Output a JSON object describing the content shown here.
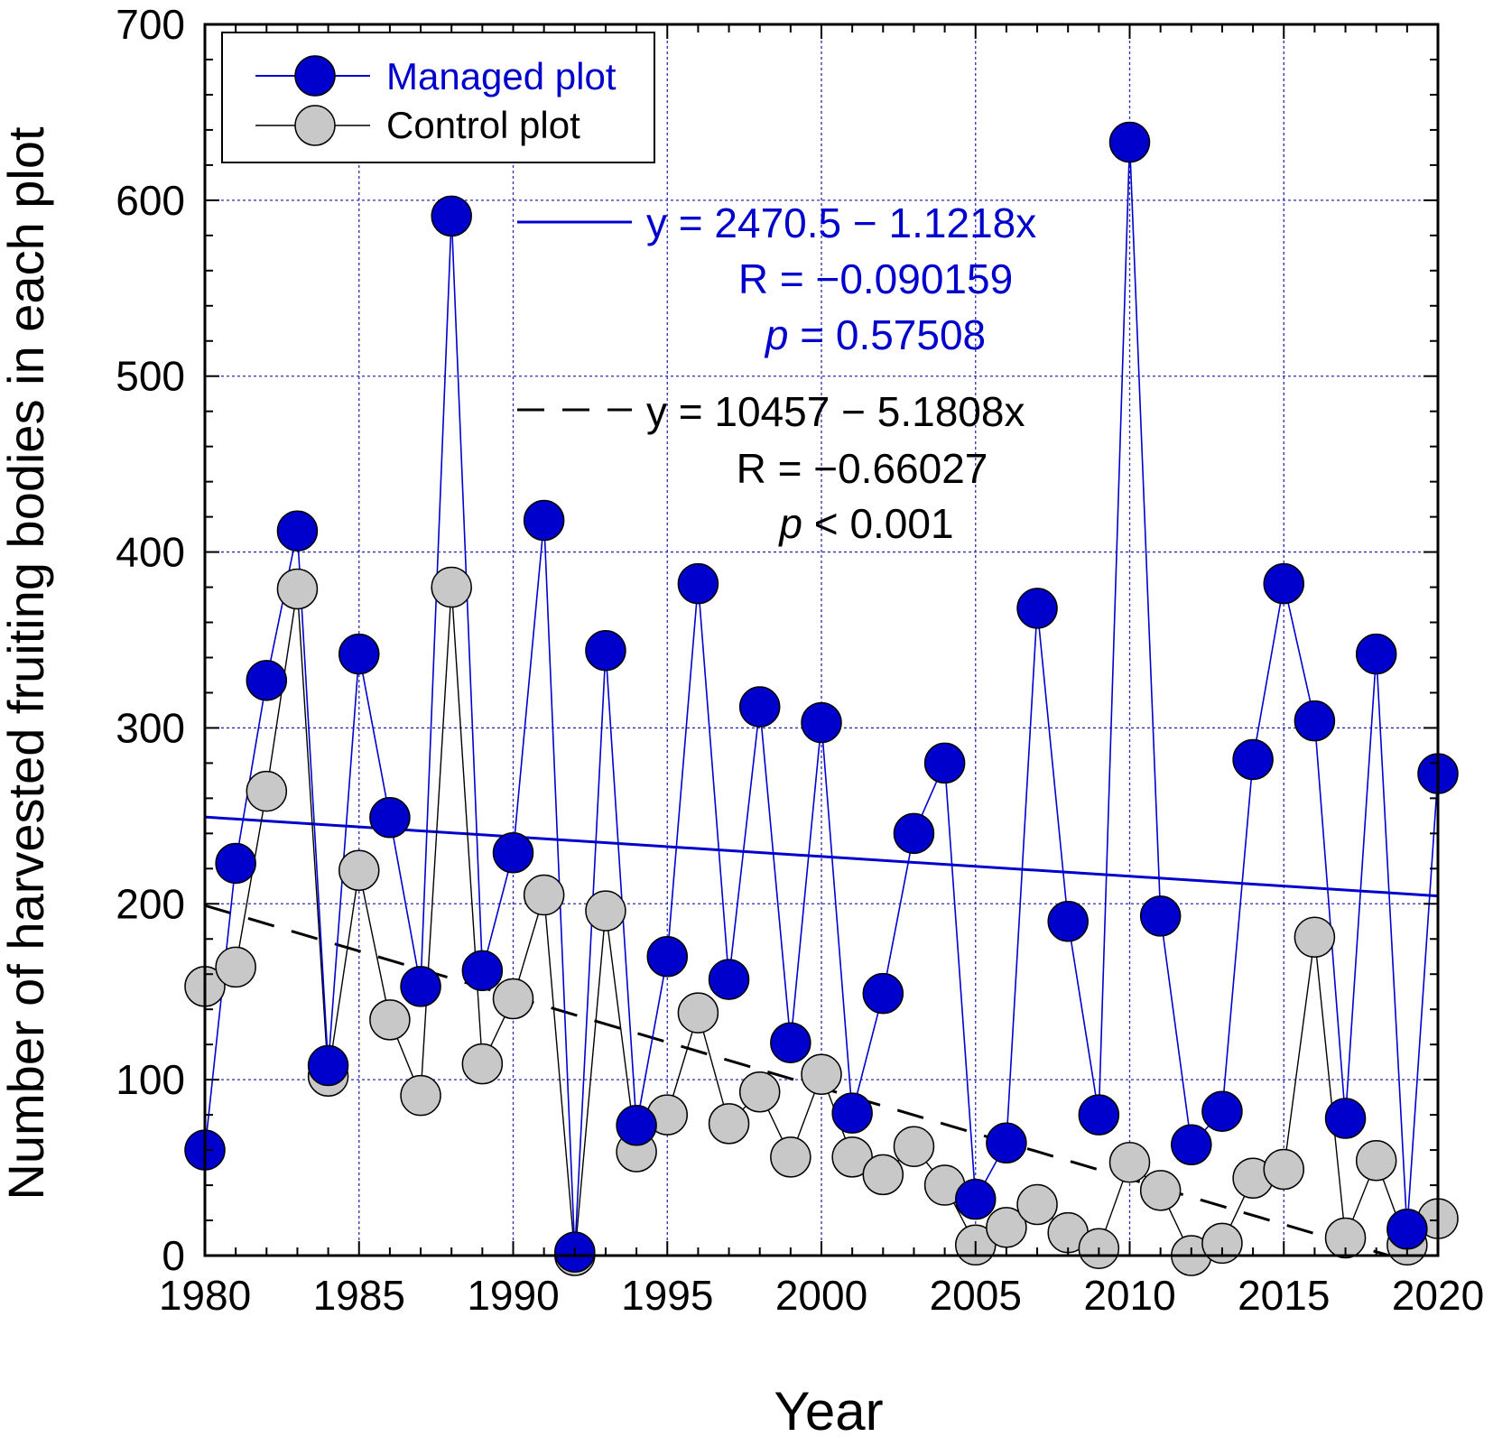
{
  "chart_data": {
    "type": "line",
    "title": "",
    "xlabel": "Year",
    "ylabel": "Number of harvested fruiting bodies in each plot",
    "xlim": [
      1980,
      2020
    ],
    "ylim": [
      0,
      700
    ],
    "xticks": [
      "1980",
      "1985",
      "1990",
      "1995",
      "2000",
      "2005",
      "2010",
      "2015",
      "2020"
    ],
    "yticks": [
      "0",
      "100",
      "200",
      "300",
      "400",
      "500",
      "600",
      "700"
    ],
    "grid": true,
    "legend_position": "top-left",
    "x": [
      1980,
      1981,
      1982,
      1983,
      1984,
      1985,
      1986,
      1987,
      1988,
      1989,
      1990,
      1991,
      1992,
      1993,
      1994,
      1995,
      1996,
      1997,
      1998,
      1999,
      2000,
      2001,
      2002,
      2003,
      2004,
      2005,
      2006,
      2007,
      2008,
      2009,
      2010,
      2011,
      2012,
      2013,
      2014,
      2015,
      2016,
      2017,
      2018,
      2019,
      2020
    ],
    "series": [
      {
        "name": "Managed plot",
        "color": "#0000cc",
        "marker_color": "#0000cc",
        "values": [
          60,
          223,
          327,
          412,
          108,
          342,
          249,
          153,
          591,
          162,
          229,
          418,
          2,
          344,
          74,
          170,
          382,
          157,
          312,
          121,
          303,
          81,
          149,
          240,
          280,
          32,
          64,
          368,
          190,
          80,
          633,
          193,
          63,
          82,
          282,
          382,
          304,
          78,
          342,
          15,
          274
        ]
      },
      {
        "name": "Control plot",
        "color": "#000000",
        "marker_color": "#c8c8c8",
        "values": [
          153,
          164,
          264,
          379,
          102,
          219,
          134,
          91,
          380,
          109,
          146,
          205,
          0,
          196,
          59,
          80,
          138,
          75,
          93,
          56,
          103,
          56,
          46,
          62,
          40,
          6,
          16,
          29,
          13,
          4,
          53,
          37,
          0,
          7,
          44,
          49,
          181,
          10,
          54,
          6,
          21
        ]
      }
    ],
    "regressions": [
      {
        "series": "Managed plot",
        "intercept": 2470.5,
        "slope": -1.1218,
        "style": "solid",
        "color": "#0000cc",
        "equation": "y = 2470.5 − 1.1218x",
        "r_text": "R = −0.090159",
        "p_symbol": "p",
        "p_text": " = 0.57508"
      },
      {
        "series": "Control plot",
        "intercept": 10457,
        "slope": -5.1808,
        "style": "dashed",
        "color": "#000000",
        "equation": "y = 10457 − 5.1808x",
        "r_text": "R = −0.66027",
        "p_symbol": "p",
        "p_text": " < 0.001"
      }
    ]
  }
}
